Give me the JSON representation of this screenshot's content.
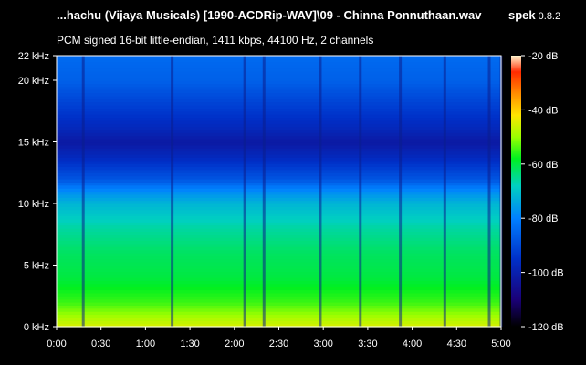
{
  "header": {
    "title": "...hachu (Vijaya Musicals) [1990-ACDRip-WAV]\\09 - Chinna Ponnuthaan.wav",
    "app_name": "spek",
    "app_version": "0.8.2",
    "subtitle": "PCM signed 16-bit little-endian, 1411 kbps, 44100 Hz, 2 channels"
  },
  "chart_data": {
    "type": "heatmap",
    "title": "",
    "xlabel": "",
    "ylabel": "",
    "x_ticks": [
      "0:00",
      "0:30",
      "1:00",
      "1:30",
      "2:00",
      "2:30",
      "3:00",
      "3:30",
      "4:00",
      "4:30",
      "5:00"
    ],
    "x_range_seconds": [
      0,
      300
    ],
    "y_ticks": [
      "0 kHz",
      "5 kHz",
      "10 kHz",
      "15 kHz",
      "20 kHz",
      "22 kHz"
    ],
    "y_tick_values_khz": [
      0,
      5,
      10,
      15,
      20,
      22
    ],
    "y_range_khz": [
      0,
      22
    ],
    "colorbar_ticks": [
      "-20 dB",
      "-40 dB",
      "-60 dB",
      "-80 dB",
      "-100 dB",
      "-120 dB"
    ],
    "colorbar_values_db": [
      -20,
      -40,
      -60,
      -80,
      -100,
      -120
    ],
    "colorbar_range_db": [
      -120,
      -20
    ],
    "colorscale": [
      "#fff7d0",
      "#ff2a00",
      "#ff8c00",
      "#ffe600",
      "#9aff00",
      "#00f020",
      "#00d0c0",
      "#0080ff",
      "#0030c8",
      "#1a0078",
      "#000000"
    ],
    "frequency_profile_db": [
      {
        "khz": 0,
        "db": -45
      },
      {
        "khz": 2,
        "db": -55
      },
      {
        "khz": 4,
        "db": -60
      },
      {
        "khz": 6,
        "db": -62
      },
      {
        "khz": 8,
        "db": -66
      },
      {
        "khz": 10,
        "db": -72
      },
      {
        "khz": 11,
        "db": -78
      },
      {
        "khz": 12,
        "db": -88
      },
      {
        "khz": 14,
        "db": -98
      },
      {
        "khz": 15,
        "db": -102
      },
      {
        "khz": 16,
        "db": -98
      },
      {
        "khz": 18,
        "db": -92
      },
      {
        "khz": 20,
        "db": -86
      },
      {
        "khz": 22,
        "db": -84
      }
    ],
    "quiet_gaps_seconds": [
      18,
      78,
      127,
      140,
      178,
      205,
      232,
      262,
      292,
      300
    ]
  }
}
